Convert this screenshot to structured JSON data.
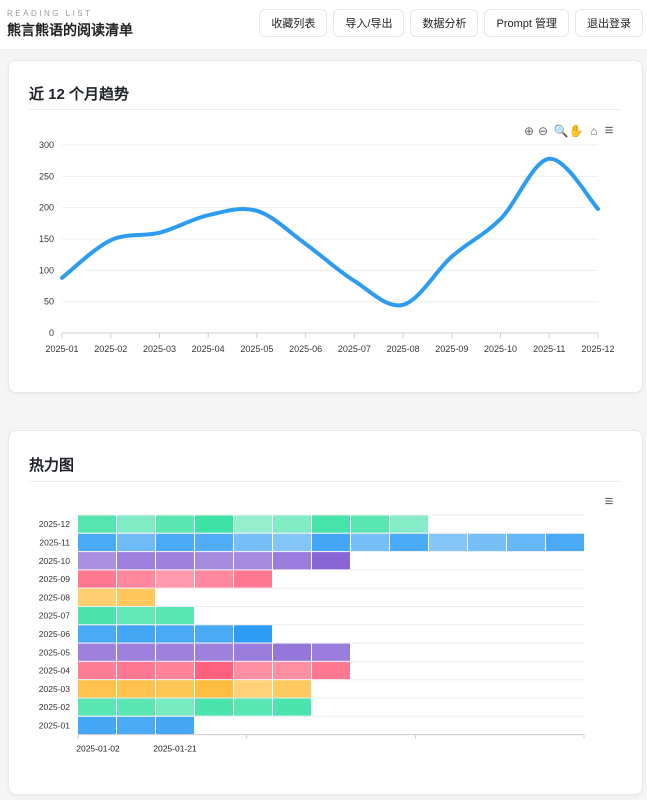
{
  "header": {
    "eyebrow": "READING LIST",
    "title": "熊言熊语的阅读清单",
    "nav": [
      "收藏列表",
      "导入/导出",
      "数据分析",
      "Prompt 管理",
      "退出登录"
    ]
  },
  "trend": {
    "title": "近 12 个月趋势",
    "toolbar": [
      "zoom-in-icon",
      "zoom-out-icon",
      "selection-zoom-icon",
      "pan-hand-icon",
      "home-reset-icon",
      "menu-icon"
    ],
    "chart_data": {
      "type": "line",
      "categories": [
        "2025-01",
        "2025-02",
        "2025-03",
        "2025-04",
        "2025-05",
        "2025-06",
        "2025-07",
        "2025-08",
        "2025-09",
        "2025-10",
        "2025-11",
        "2025-12"
      ],
      "values": [
        88,
        148,
        160,
        188,
        195,
        142,
        83,
        45,
        122,
        182,
        278,
        198
      ],
      "ylim": [
        0,
        300
      ],
      "yticks": [
        0,
        50,
        100,
        150,
        200,
        250,
        300
      ],
      "color": "#2d9cf0",
      "grid": true,
      "curve": "smooth"
    }
  },
  "heatmap": {
    "title": "热力图",
    "toolbar": [
      "menu-icon"
    ],
    "chart_data": {
      "type": "heatmap",
      "rows": [
        "2025-12",
        "2025-11",
        "2025-10",
        "2025-09",
        "2025-08",
        "2025-07",
        "2025-06",
        "2025-05",
        "2025-04",
        "2025-03",
        "2025-02",
        "2025-01"
      ],
      "row_colors": [
        "#2fe0a0",
        "#2d9cf5",
        "#8866d6",
        "#ff5a78",
        "#ffb830",
        "#2fe0a0",
        "#2d9cf5",
        "#8866d6",
        "#ff5a78",
        "#ffb830",
        "#2fe0a0",
        "#2d9cf5"
      ],
      "intensity": [
        [
          0.75,
          0.45,
          0.7,
          0.9,
          0.3,
          0.45,
          0.85,
          0.7,
          0.4
        ],
        [
          0.8,
          0.55,
          0.8,
          0.75,
          0.5,
          0.4,
          0.85,
          0.5,
          0.8,
          0.4,
          0.5,
          0.6,
          0.8
        ],
        [
          0.6,
          0.75,
          0.75,
          0.65,
          0.65,
          0.8,
          1
        ],
        [
          0.75,
          0.6,
          0.45,
          0.6,
          0.75
        ],
        [
          0.55,
          0.7
        ],
        [
          0.8,
          0.65,
          0.7
        ],
        [
          0.8,
          0.85,
          0.8,
          0.8,
          1
        ],
        [
          0.75,
          0.75,
          0.75,
          0.75,
          0.8,
          0.85,
          0.8
        ],
        [
          0.7,
          0.75,
          0.65,
          0.95,
          0.55,
          0.55,
          0.75
        ],
        [
          0.8,
          0.8,
          0.75,
          0.9,
          0.5,
          0.65
        ],
        [
          0.7,
          0.7,
          0.5,
          0.8,
          0.7,
          0.8
        ],
        [
          0.85,
          0.8,
          0.85
        ]
      ],
      "xlabels": [
        "2025-01-02",
        "2025-01-21"
      ]
    }
  }
}
